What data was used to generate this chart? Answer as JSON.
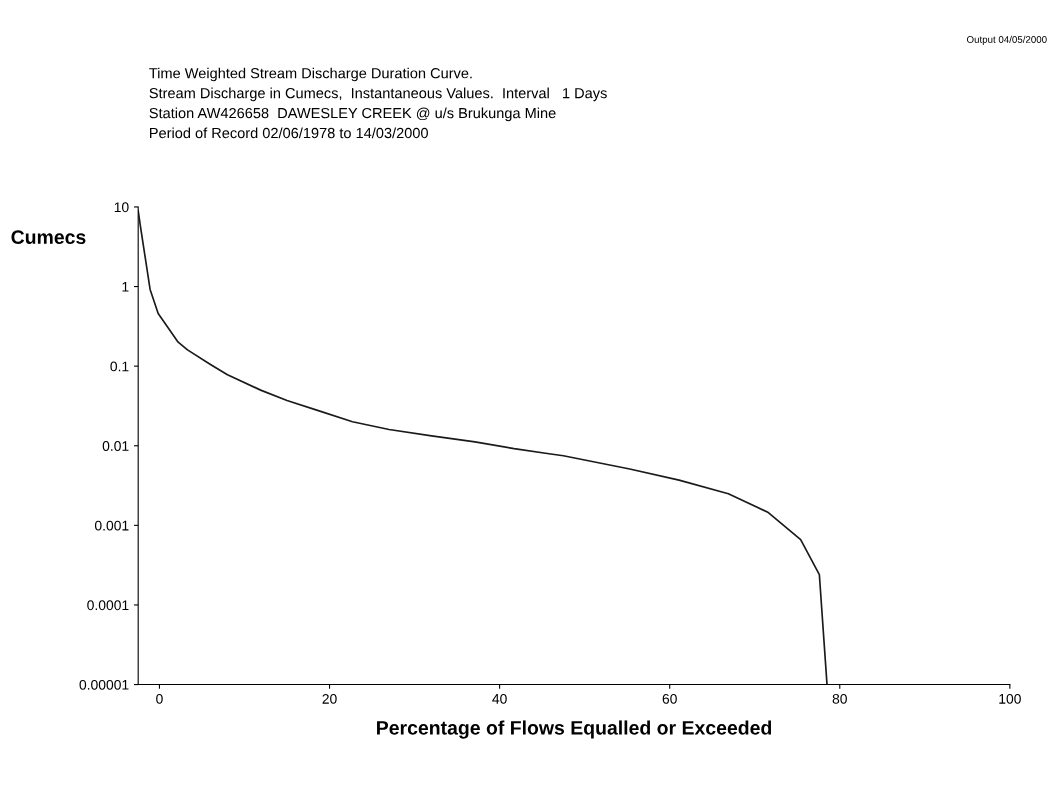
{
  "chart_data": {
    "type": "line",
    "subtitle": "Time Weighted Stream Discharge Duration Curve.\nStream Discharge in Cumecs,  Instantaneous Values.  Interval   1 Days\nStation AW426658  DAWESLEY CREEK @ u/s Brukunga Mine\nPeriod of Record 02/06/1978 to 14/03/2000",
    "annotations": [
      "Output 04/05/2000"
    ],
    "xlabel": "Percentage of Flows Equalled or Exceeded",
    "ylabel": "Cumecs",
    "x": [
      -2.5,
      -2.2,
      -1.1,
      -0.15,
      2.2,
      3.3,
      6.0,
      8.0,
      11.9,
      15.0,
      18.5,
      22.7,
      27.0,
      32.0,
      37.1,
      41.7,
      45.6,
      47.5,
      55.3,
      61.1,
      66.9,
      71.6,
      75.4,
      77.6,
      78.5
    ],
    "series": [
      {
        "color": "#1a1a1a",
        "values": [
          9,
          5.4,
          0.92,
          0.46,
          0.2,
          0.16,
          0.105,
          0.078,
          0.05,
          0.037,
          0.028,
          0.02,
          0.016,
          0.0133,
          0.0112,
          0.0092,
          0.008,
          0.0075,
          0.0051,
          0.0037,
          0.0025,
          0.00145,
          0.00066,
          0.00024,
          1e-05
        ]
      }
    ],
    "log": "y",
    "xlim": [
      -2.5,
      100
    ],
    "xticks": [
      0,
      20,
      40,
      60,
      80,
      100
    ],
    "ylim": [
      1e-05,
      10
    ],
    "yticks": [
      {
        "value": 1e-05,
        "label": "0.00001"
      },
      {
        "value": 0.0001,
        "label": "0.0001"
      },
      {
        "value": 0.001,
        "label": "0.001"
      },
      {
        "value": 0.01,
        "label": "0.01"
      },
      {
        "value": 0.1,
        "label": "0.1"
      },
      {
        "value": 1,
        "label": "1"
      },
      {
        "value": 10,
        "label": "10"
      }
    ],
    "grid": false,
    "legend": false,
    "marker": "none",
    "line_style": "solid"
  }
}
